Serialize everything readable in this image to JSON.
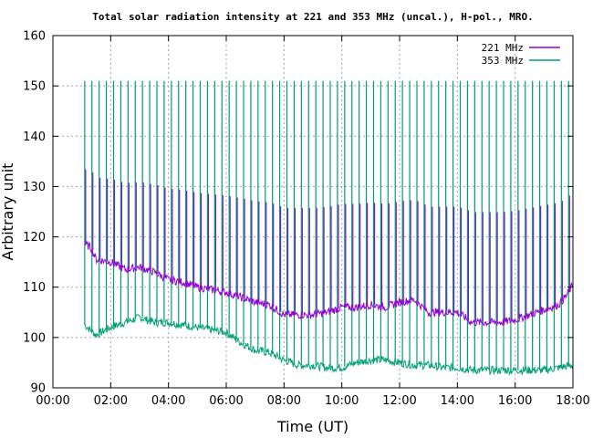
{
  "chart_data": {
    "type": "line",
    "title": "Total solar radiation intensity at 221 and 353 MHz (uncal.), H-pol., MRO.",
    "xlabel": "Time (UT)",
    "ylabel": "Arbitrary unit",
    "xlim": [
      0,
      18
    ],
    "ylim": [
      90,
      160
    ],
    "x_ticks": [
      0,
      2,
      4,
      6,
      8,
      10,
      12,
      14,
      16,
      18
    ],
    "x_tick_labels": [
      "00:00",
      "02:00",
      "04:00",
      "06:00",
      "08:00",
      "10:00",
      "12:00",
      "14:00",
      "16:00",
      "18:00"
    ],
    "y_ticks": [
      90,
      100,
      110,
      120,
      130,
      140,
      150,
      160
    ],
    "y_tick_labels": [
      "90",
      "100",
      "110",
      "120",
      "130",
      "140",
      "150",
      "160"
    ],
    "grid": true,
    "legend_position": "top-right",
    "calibration_spike_interval_hours": 0.25,
    "calibration_spike_top": 151,
    "series": [
      {
        "name": "221 MHz",
        "color": "#9400d3",
        "x": [
          1.1,
          1.3,
          1.5,
          2.0,
          2.5,
          3.0,
          3.5,
          4.0,
          4.5,
          5.0,
          5.5,
          6.0,
          6.5,
          7.0,
          7.5,
          8.0,
          8.5,
          9.0,
          9.5,
          10.0,
          10.5,
          11.0,
          11.5,
          12.0,
          12.5,
          13.0,
          13.5,
          14.0,
          14.5,
          15.0,
          15.5,
          16.0,
          16.5,
          17.0,
          17.5,
          17.8,
          18.0
        ],
        "y": [
          118.5,
          118,
          115.5,
          115,
          113.5,
          114,
          113,
          111.5,
          111,
          110,
          109.5,
          109,
          108,
          107,
          106.5,
          104.5,
          104.5,
          104.5,
          105,
          106,
          106,
          106.5,
          106,
          107,
          107.5,
          105,
          105,
          105,
          103,
          103,
          103,
          103.5,
          104.5,
          105.5,
          106.5,
          108.5,
          110.5
        ]
      },
      {
        "name": "353 MHz",
        "color": "#009e73",
        "x": [
          1.1,
          1.5,
          2.0,
          2.5,
          3.0,
          3.5,
          4.0,
          4.5,
          5.0,
          5.5,
          6.0,
          6.5,
          7.0,
          7.5,
          8.0,
          8.5,
          9.0,
          9.5,
          10.0,
          10.5,
          11.0,
          11.5,
          12.0,
          12.5,
          13.0,
          13.5,
          14.0,
          14.5,
          15.0,
          15.5,
          16.0,
          16.5,
          17.0,
          17.5,
          18.0
        ],
        "y": [
          102.5,
          100.5,
          102,
          103,
          104,
          103,
          103,
          102.5,
          102,
          101.5,
          101,
          99,
          97.5,
          97,
          95.5,
          94.5,
          94.5,
          94,
          94,
          95,
          95.5,
          95.5,
          95,
          94.5,
          94.5,
          94,
          94,
          93.5,
          93.5,
          93.5,
          93.5,
          93.5,
          93.5,
          94,
          94.5
        ]
      }
    ]
  }
}
